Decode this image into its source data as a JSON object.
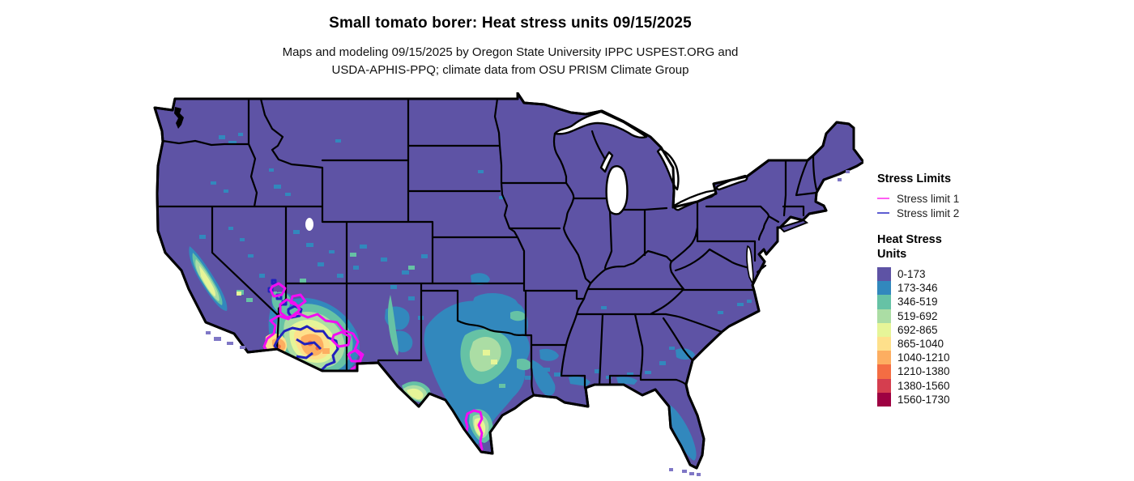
{
  "header": {
    "title": "Small tomato borer: Heat stress units 09/15/2025",
    "subtitle_line1": "Maps and modeling 09/15/2025 by Oregon State University IPPC USPEST.ORG and",
    "subtitle_line2": "USDA-APHIS-PPQ; climate data from OSU PRISM Climate Group"
  },
  "legend": {
    "stress_limits": {
      "title": "Stress Limits",
      "items": [
        {
          "label": "Stress limit 1",
          "color": "#ff5df2",
          "map_color": "#f20df2"
        },
        {
          "label": "Stress limit 2",
          "color": "#5e5ed2",
          "map_color": "#2121bd"
        }
      ]
    },
    "heat_stress": {
      "title_line1": "Heat Stress",
      "title_line2": "Units",
      "classes": [
        {
          "range": "0-173",
          "color": "#5e53a5"
        },
        {
          "range": "173-346",
          "color": "#3288bd"
        },
        {
          "range": "346-519",
          "color": "#66c2a5"
        },
        {
          "range": "519-692",
          "color": "#abdda4"
        },
        {
          "range": "692-865",
          "color": "#e6f598"
        },
        {
          "range": "865-1040",
          "color": "#fee08b"
        },
        {
          "range": "1040-1210",
          "color": "#fdae61"
        },
        {
          "range": "1210-1380",
          "color": "#f46d43"
        },
        {
          "range": "1380-1560",
          "color": "#d53e4f"
        },
        {
          "range": "1560-1730",
          "color": "#9e0142"
        }
      ]
    }
  },
  "map": {
    "base_color": "#5e53a5",
    "ocean_color": "#ffffff",
    "border_color": "#000000",
    "island_color": "#7f77c6"
  }
}
